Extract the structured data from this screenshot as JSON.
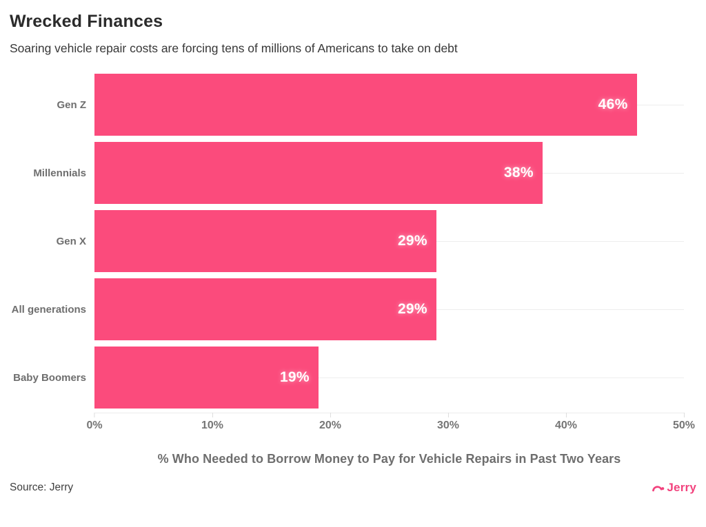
{
  "header": {
    "title": "Wrecked Finances",
    "subtitle": "Soaring vehicle repair costs are forcing tens of millions of Americans to take on debt"
  },
  "chart_data": {
    "type": "bar",
    "orientation": "horizontal",
    "categories": [
      "Gen Z",
      "Millennials",
      "Gen X",
      "All generations",
      "Baby Boomers"
    ],
    "values": [
      46,
      38,
      29,
      29,
      19
    ],
    "value_labels": [
      "46%",
      "38%",
      "29%",
      "29%",
      "19%"
    ],
    "x_ticks": [
      "0%",
      "10%",
      "20%",
      "30%",
      "40%",
      "50%"
    ],
    "xlim": [
      0,
      50
    ],
    "xlabel": "% Who Needed to Borrow Money to Pay for Vehicle Repairs in Past Two Years",
    "bar_color": "#FB4B7C",
    "gridline_color": "#ededed",
    "grid": true,
    "legend_position": "none"
  },
  "footer": {
    "source": "Source: Jerry",
    "logo_text": "Jerry",
    "logo_color": "#F2427D"
  }
}
